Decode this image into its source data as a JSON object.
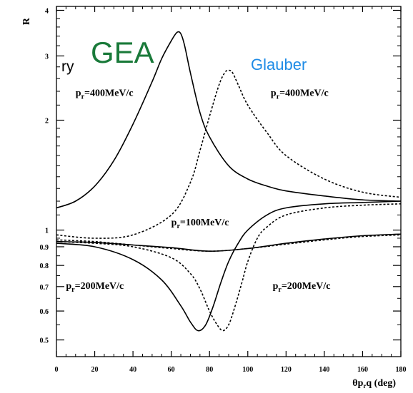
{
  "chart_data": {
    "type": "line",
    "title": "",
    "xlabel": "θp_rq (deg)",
    "ylabel": "R",
    "yscale": "log",
    "xlim": [
      0,
      180
    ],
    "ylim": [
      0.45,
      4.1
    ],
    "grid": false,
    "x_ticks": [
      0,
      20,
      40,
      60,
      80,
      100,
      120,
      140,
      160,
      180
    ],
    "y_ticks": [
      {
        "value": 0.5,
        "label": "0.5"
      },
      {
        "value": 0.6,
        "label": "0.6"
      },
      {
        "value": 0.7,
        "label": "0.7"
      },
      {
        "value": 0.8,
        "label": "0.8"
      },
      {
        "value": 0.9,
        "label": "0.9"
      },
      {
        "value": 1,
        "label": "1"
      },
      {
        "value": 2,
        "label": "2"
      },
      {
        "value": 3,
        "label": "3"
      },
      {
        "value": 4,
        "label": "4"
      }
    ],
    "series": [
      {
        "model": "GEA",
        "style": "solid",
        "color": "#000000",
        "x": [
          0,
          10,
          20,
          30,
          40,
          50,
          55,
          60,
          63,
          65,
          67,
          70,
          75,
          80,
          90,
          100,
          110,
          120,
          140,
          160,
          180
        ],
        "y": [
          1.15,
          1.2,
          1.32,
          1.55,
          1.95,
          2.55,
          2.95,
          3.3,
          3.48,
          3.45,
          3.2,
          2.7,
          2.1,
          1.8,
          1.5,
          1.38,
          1.32,
          1.28,
          1.24,
          1.21,
          1.2
        ]
      },
      {
        "model": "Glauber",
        "style": "dashed",
        "color": "#000000",
        "x": [
          0,
          20,
          40,
          60,
          70,
          75,
          80,
          85,
          88,
          90,
          92,
          95,
          100,
          110,
          120,
          140,
          160,
          180
        ],
        "y": [
          0.97,
          0.95,
          0.97,
          1.1,
          1.35,
          1.65,
          2.05,
          2.5,
          2.7,
          2.74,
          2.7,
          2.5,
          2.2,
          1.85,
          1.6,
          1.38,
          1.27,
          1.23
        ]
      },
      {
        "model": "GEA",
        "style": "solid",
        "color": "#000000",
        "x": [
          0,
          20,
          40,
          60,
          80,
          100,
          120,
          140,
          160,
          180
        ],
        "y": [
          0.93,
          0.925,
          0.91,
          0.895,
          0.875,
          0.89,
          0.92,
          0.945,
          0.965,
          0.975
        ]
      },
      {
        "model": "Glauber",
        "style": "dashed",
        "color": "#000000",
        "x": [
          0,
          20,
          40,
          60,
          80,
          100,
          120,
          140,
          160,
          180
        ],
        "y": [
          0.94,
          0.93,
          0.91,
          0.89,
          0.875,
          0.89,
          0.915,
          0.94,
          0.96,
          0.97
        ]
      },
      {
        "model": "GEA",
        "style": "solid",
        "color": "#000000",
        "x": [
          0,
          20,
          40,
          55,
          65,
          70,
          74,
          78,
          82,
          86,
          90,
          95,
          100,
          110,
          120,
          140,
          160,
          180
        ],
        "y": [
          0.92,
          0.9,
          0.83,
          0.73,
          0.62,
          0.56,
          0.53,
          0.55,
          0.62,
          0.72,
          0.82,
          0.92,
          1.0,
          1.1,
          1.15,
          1.18,
          1.19,
          1.2
        ]
      },
      {
        "model": "Glauber",
        "style": "dashed",
        "color": "#000000",
        "x": [
          0,
          20,
          40,
          60,
          70,
          75,
          80,
          84,
          87,
          90,
          93,
          97,
          100,
          105,
          110,
          120,
          140,
          160,
          180
        ],
        "y": [
          0.93,
          0.92,
          0.9,
          0.84,
          0.76,
          0.69,
          0.6,
          0.55,
          0.53,
          0.55,
          0.61,
          0.72,
          0.82,
          0.95,
          1.02,
          1.1,
          1.15,
          1.17,
          1.18
        ]
      }
    ],
    "annotations": [
      {
        "main": "p",
        "sub": "r",
        "rest": "=400MeV/c",
        "x": 10,
        "y": 2.33
      },
      {
        "main": "p",
        "sub": "r",
        "rest": "=400MeV/c",
        "x": 112,
        "y": 2.33
      },
      {
        "main": "p",
        "sub": "r",
        "rest": "=100MeV/c",
        "x": 60,
        "y": 1.03
      },
      {
        "main": "p",
        "sub": "r",
        "rest": "=200MeV/c",
        "x": 5,
        "y": 0.69
      },
      {
        "main": "p",
        "sub": "r",
        "rest": "=200MeV/c",
        "x": 113,
        "y": 0.69
      }
    ]
  },
  "model_labels": {
    "gea": {
      "text": "GEA",
      "color": "#1a7a3a"
    },
    "glauber": {
      "text": "Glauber",
      "color": "#1e8be6"
    }
  },
  "cut_word": "ry"
}
